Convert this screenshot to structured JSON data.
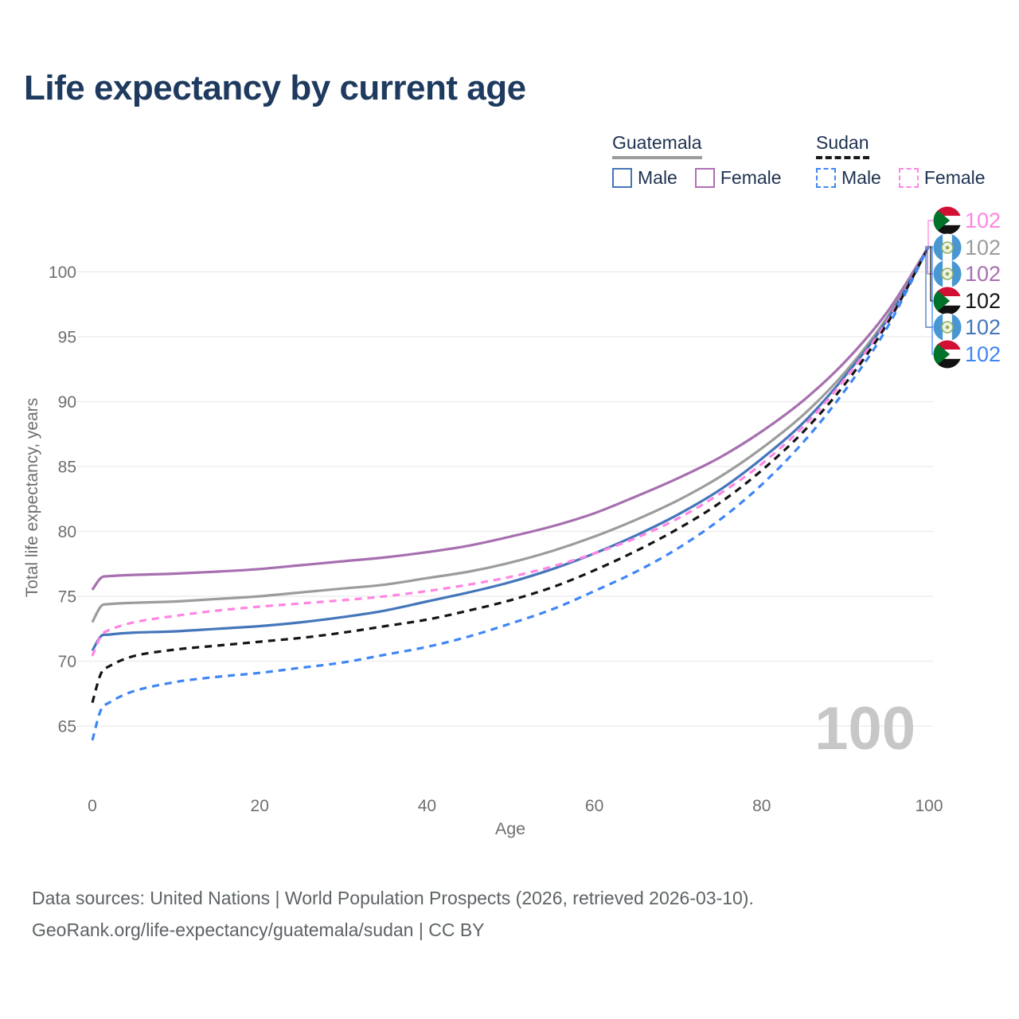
{
  "title": {
    "text": "Life expectancy by current age",
    "color": "#1e3a5f"
  },
  "legend": {
    "text_color": "#1e3250",
    "groups": [
      {
        "country": "Guatemala",
        "line_style": "solid",
        "underline_color": "#9c9c9c",
        "items": [
          {
            "label": "Male",
            "color": "#4476b9"
          },
          {
            "label": "Female",
            "color": "#b06fb6"
          }
        ]
      },
      {
        "country": "Sudan",
        "line_style": "dashed",
        "underline_color": "#1a1a1a",
        "items": [
          {
            "label": "Male",
            "color": "#3f86f5"
          },
          {
            "label": "Female",
            "color": "#ff85e2"
          }
        ]
      }
    ]
  },
  "chart_data": {
    "type": "line",
    "title": "Life expectancy by current age",
    "xlabel": "Age",
    "ylabel": "Total life expectancy, years",
    "xlim": [
      0,
      100
    ],
    "ylim": [
      63,
      103.5
    ],
    "x_ticks": [
      0,
      20,
      40,
      60,
      80,
      100
    ],
    "y_ticks": [
      65,
      70,
      75,
      80,
      85,
      90,
      95,
      100
    ],
    "grid": "horizontal",
    "grid_color": "#ebebeb",
    "axis_text_color": "#6f6f6f",
    "watermark": {
      "text": "100",
      "color": "#c7c7c7"
    },
    "x": [
      0,
      1,
      2,
      5,
      10,
      15,
      20,
      25,
      30,
      35,
      40,
      45,
      50,
      55,
      60,
      65,
      70,
      75,
      80,
      85,
      90,
      95,
      100
    ],
    "series": [
      {
        "name": "Guatemala Female",
        "country": "Guatemala",
        "sex": "Female",
        "color": "#a76fb0",
        "dashed": false,
        "values": [
          75.5,
          76.4,
          76.55,
          76.65,
          76.75,
          76.9,
          77.1,
          77.4,
          77.7,
          78.0,
          78.4,
          78.9,
          79.6,
          80.4,
          81.4,
          82.7,
          84.1,
          85.7,
          87.7,
          90.1,
          93.1,
          96.9,
          102
        ]
      },
      {
        "name": "Guatemala Both sexes",
        "country": "Guatemala",
        "sex": "Both",
        "color": "#9c9c9c",
        "dashed": false,
        "values": [
          73.0,
          74.2,
          74.4,
          74.5,
          74.6,
          74.8,
          75.0,
          75.3,
          75.6,
          75.9,
          76.4,
          76.9,
          77.6,
          78.5,
          79.6,
          80.9,
          82.4,
          84.2,
          86.4,
          89.0,
          92.3,
          96.5,
          102
        ]
      },
      {
        "name": "Guatemala Male",
        "country": "Guatemala",
        "sex": "Male",
        "color": "#4476b9",
        "dashed": false,
        "values": [
          70.8,
          71.9,
          72.05,
          72.2,
          72.3,
          72.5,
          72.7,
          73.0,
          73.4,
          73.9,
          74.6,
          75.3,
          76.1,
          77.1,
          78.3,
          79.7,
          81.3,
          83.2,
          85.6,
          88.4,
          92.0,
          96.3,
          102
        ]
      },
      {
        "name": "Sudan Female",
        "country": "Sudan",
        "sex": "Female",
        "color": "#ff85e2",
        "dashed": true,
        "values": [
          70.4,
          71.9,
          72.4,
          73.0,
          73.5,
          73.9,
          74.2,
          74.45,
          74.7,
          75.0,
          75.4,
          75.9,
          76.5,
          77.3,
          78.3,
          79.5,
          81.0,
          82.9,
          85.2,
          88.1,
          91.8,
          96.2,
          102
        ]
      },
      {
        "name": "Sudan Both sexes",
        "country": "Sudan",
        "sex": "Both",
        "color": "#141414",
        "dashed": true,
        "values": [
          66.8,
          69.0,
          69.6,
          70.4,
          70.9,
          71.2,
          71.5,
          71.8,
          72.2,
          72.7,
          73.2,
          73.9,
          74.7,
          75.7,
          77.0,
          78.5,
          80.2,
          82.2,
          84.7,
          87.7,
          91.4,
          96.0,
          102
        ]
      },
      {
        "name": "Sudan Male",
        "country": "Sudan",
        "sex": "Male",
        "color": "#3f86f5",
        "dashed": true,
        "values": [
          63.9,
          66.2,
          66.8,
          67.7,
          68.4,
          68.8,
          69.1,
          69.5,
          69.9,
          70.5,
          71.1,
          71.9,
          72.9,
          74.0,
          75.4,
          76.9,
          78.7,
          80.9,
          83.6,
          86.9,
          90.9,
          95.7,
          102
        ]
      }
    ],
    "end_labels": [
      {
        "series": "Sudan Female",
        "flag": "sudan",
        "value": "102",
        "color": "#ff85e2"
      },
      {
        "series": "Guatemala Both sexes",
        "flag": "guatemala",
        "value": "102",
        "color": "#9c9c9c"
      },
      {
        "series": "Guatemala Female",
        "flag": "guatemala",
        "value": "102",
        "color": "#a76fb0"
      },
      {
        "series": "Sudan Both sexes",
        "flag": "sudan",
        "value": "102",
        "color": "#141414"
      },
      {
        "series": "Guatemala Male",
        "flag": "guatemala",
        "value": "102",
        "color": "#4476b9"
      },
      {
        "series": "Sudan Male",
        "flag": "sudan",
        "value": "102",
        "color": "#3f86f5"
      }
    ],
    "flag_colors": {
      "sudan": {
        "red": "#d21034",
        "white": "#ffffff",
        "black": "#111111",
        "green": "#007229"
      },
      "guatemala": {
        "blue": "#4997d2",
        "white": "#ffffff",
        "wreath": "#8fae62"
      }
    }
  },
  "footer": {
    "line1": "Data sources: United Nations | World Population Prospects (2026, retrieved 2026-03-10).",
    "line2": "GeoRank.org/life-expectancy/guatemala/sudan | CC BY"
  }
}
